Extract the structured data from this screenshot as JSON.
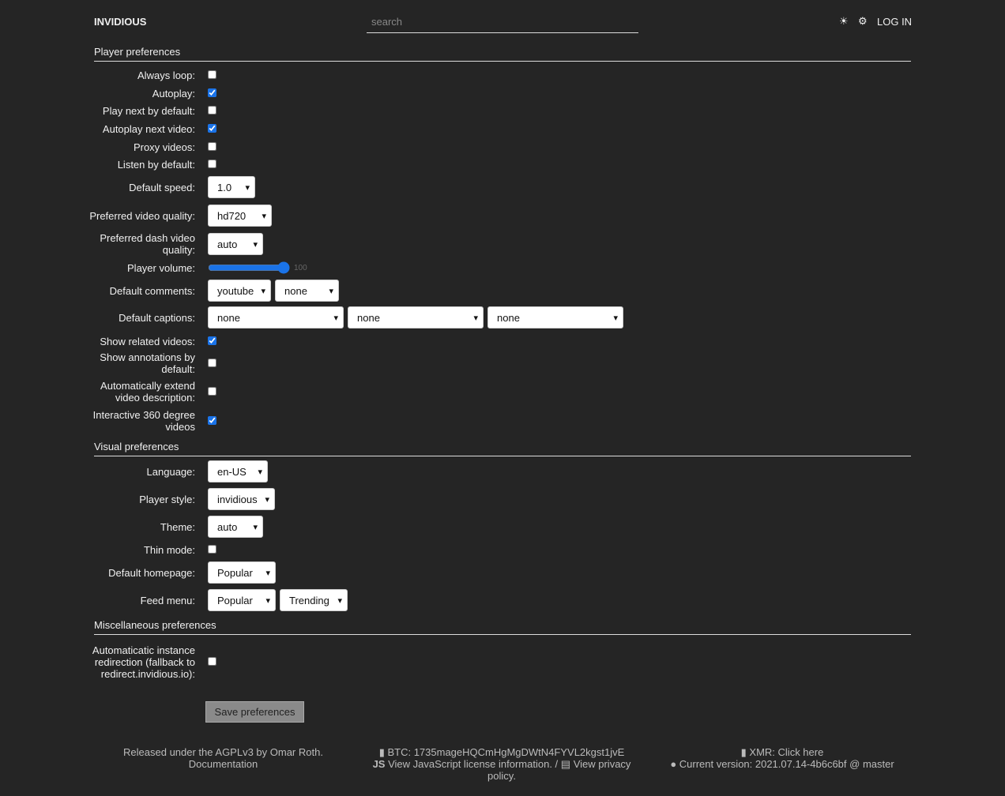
{
  "header": {
    "brand": "INVIDIOUS",
    "search_placeholder": "search",
    "theme_icon": "sun-icon",
    "settings_icon": "gear-icon",
    "login": "LOG IN"
  },
  "sections": [
    {
      "title": "Player preferences",
      "rows": [
        {
          "label": "Always loop:",
          "type": "checkbox",
          "checked": false
        },
        {
          "label": "Autoplay:",
          "type": "checkbox",
          "checked": true
        },
        {
          "label": "Play next by default:",
          "type": "checkbox",
          "checked": false
        },
        {
          "label": "Autoplay next video:",
          "type": "checkbox",
          "checked": true
        },
        {
          "label": "Proxy videos:",
          "type": "checkbox",
          "checked": false
        },
        {
          "label": "Listen by default:",
          "type": "checkbox",
          "checked": false
        },
        {
          "label": "Default speed:",
          "type": "select",
          "values": [
            "1.0"
          ]
        },
        {
          "label": "Preferred video quality:",
          "type": "select",
          "values": [
            "hd720"
          ]
        },
        {
          "label": "Preferred dash video quality:",
          "type": "select",
          "values": [
            "auto"
          ]
        },
        {
          "label": "Player volume:",
          "type": "range",
          "value": 100
        },
        {
          "label": "Default comments:",
          "type": "select",
          "values": [
            "youtube",
            "none"
          ]
        },
        {
          "label": "Default captions:",
          "type": "select",
          "values": [
            "none",
            "none",
            "none"
          ]
        },
        {
          "label": "Show related videos:",
          "type": "checkbox",
          "checked": true
        },
        {
          "label": "Show annotations by default:",
          "type": "checkbox",
          "checked": false
        },
        {
          "label": "Automatically extend video description:",
          "type": "checkbox",
          "checked": false
        },
        {
          "label": "Interactive 360 degree videos",
          "type": "checkbox",
          "checked": true
        }
      ]
    },
    {
      "title": "Visual preferences",
      "rows": [
        {
          "label": "Language:",
          "type": "select",
          "values": [
            "en-US"
          ]
        },
        {
          "label": "Player style:",
          "type": "select",
          "values": [
            "invidious"
          ]
        },
        {
          "label": "Theme:",
          "type": "select",
          "values": [
            "auto"
          ]
        },
        {
          "label": "Thin mode:",
          "type": "checkbox",
          "checked": false
        },
        {
          "label": "Default homepage:",
          "type": "select",
          "values": [
            "Popular"
          ]
        },
        {
          "label": "Feed menu:",
          "type": "select",
          "values": [
            "Popular",
            "Trending"
          ]
        }
      ]
    },
    {
      "title": "Miscellaneous preferences",
      "rows": [
        {
          "label": "Automaticatic instance redirection (fallback to redirect.invidious.io):",
          "type": "checkbox",
          "checked": false
        }
      ]
    }
  ],
  "save_label": "Save preferences",
  "footer": {
    "license": "Released under the AGPLv3 by Omar Roth.",
    "docs": "Documentation",
    "btc": "BTC: 1735mageHQCmHgMgDWtN4FYVL2kgst1jvE",
    "js_license": "View JavaScript license information.",
    "privacy": "View privacy policy.",
    "xmr": "XMR: Click here",
    "version": "Current version: 2021.07.14-4b6c6bf @ master"
  }
}
